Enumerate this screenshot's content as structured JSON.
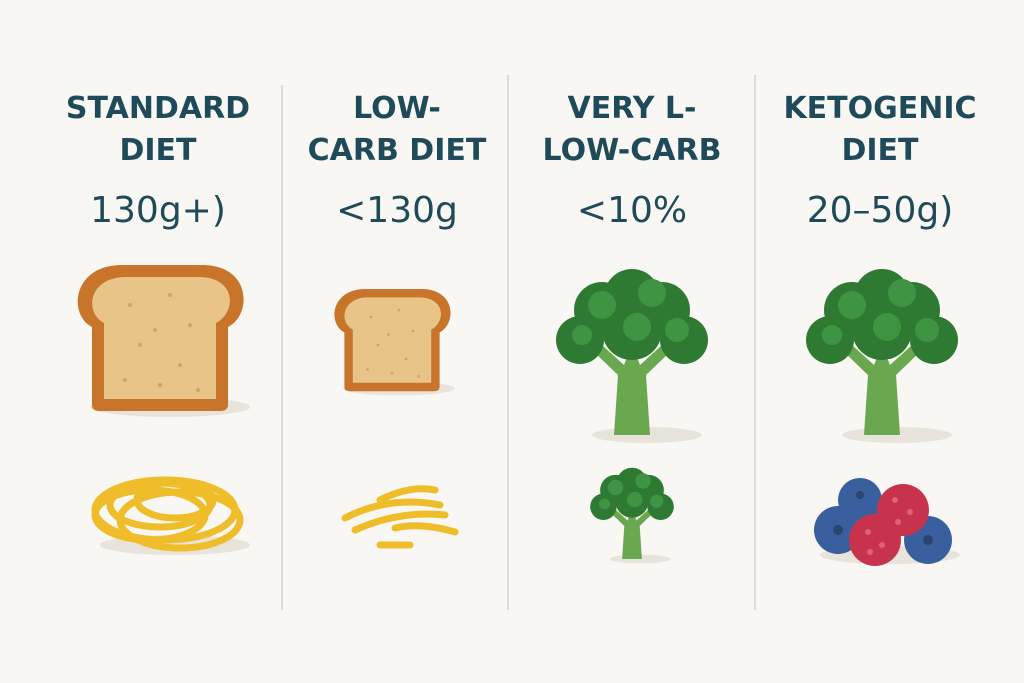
{
  "columns": [
    {
      "title_lines": [
        "STANDARD",
        "DIET"
      ],
      "amount": "130g+)"
    },
    {
      "title_lines": [
        "LOW-",
        "CARB DIET"
      ],
      "amount": "<130g"
    },
    {
      "title_lines": [
        "VERY L-",
        "LOW-CARB"
      ],
      "amount": "<10%"
    },
    {
      "title_lines": [
        "KETOGENIC",
        "DIET"
      ],
      "amount": "20–50g)"
    }
  ]
}
